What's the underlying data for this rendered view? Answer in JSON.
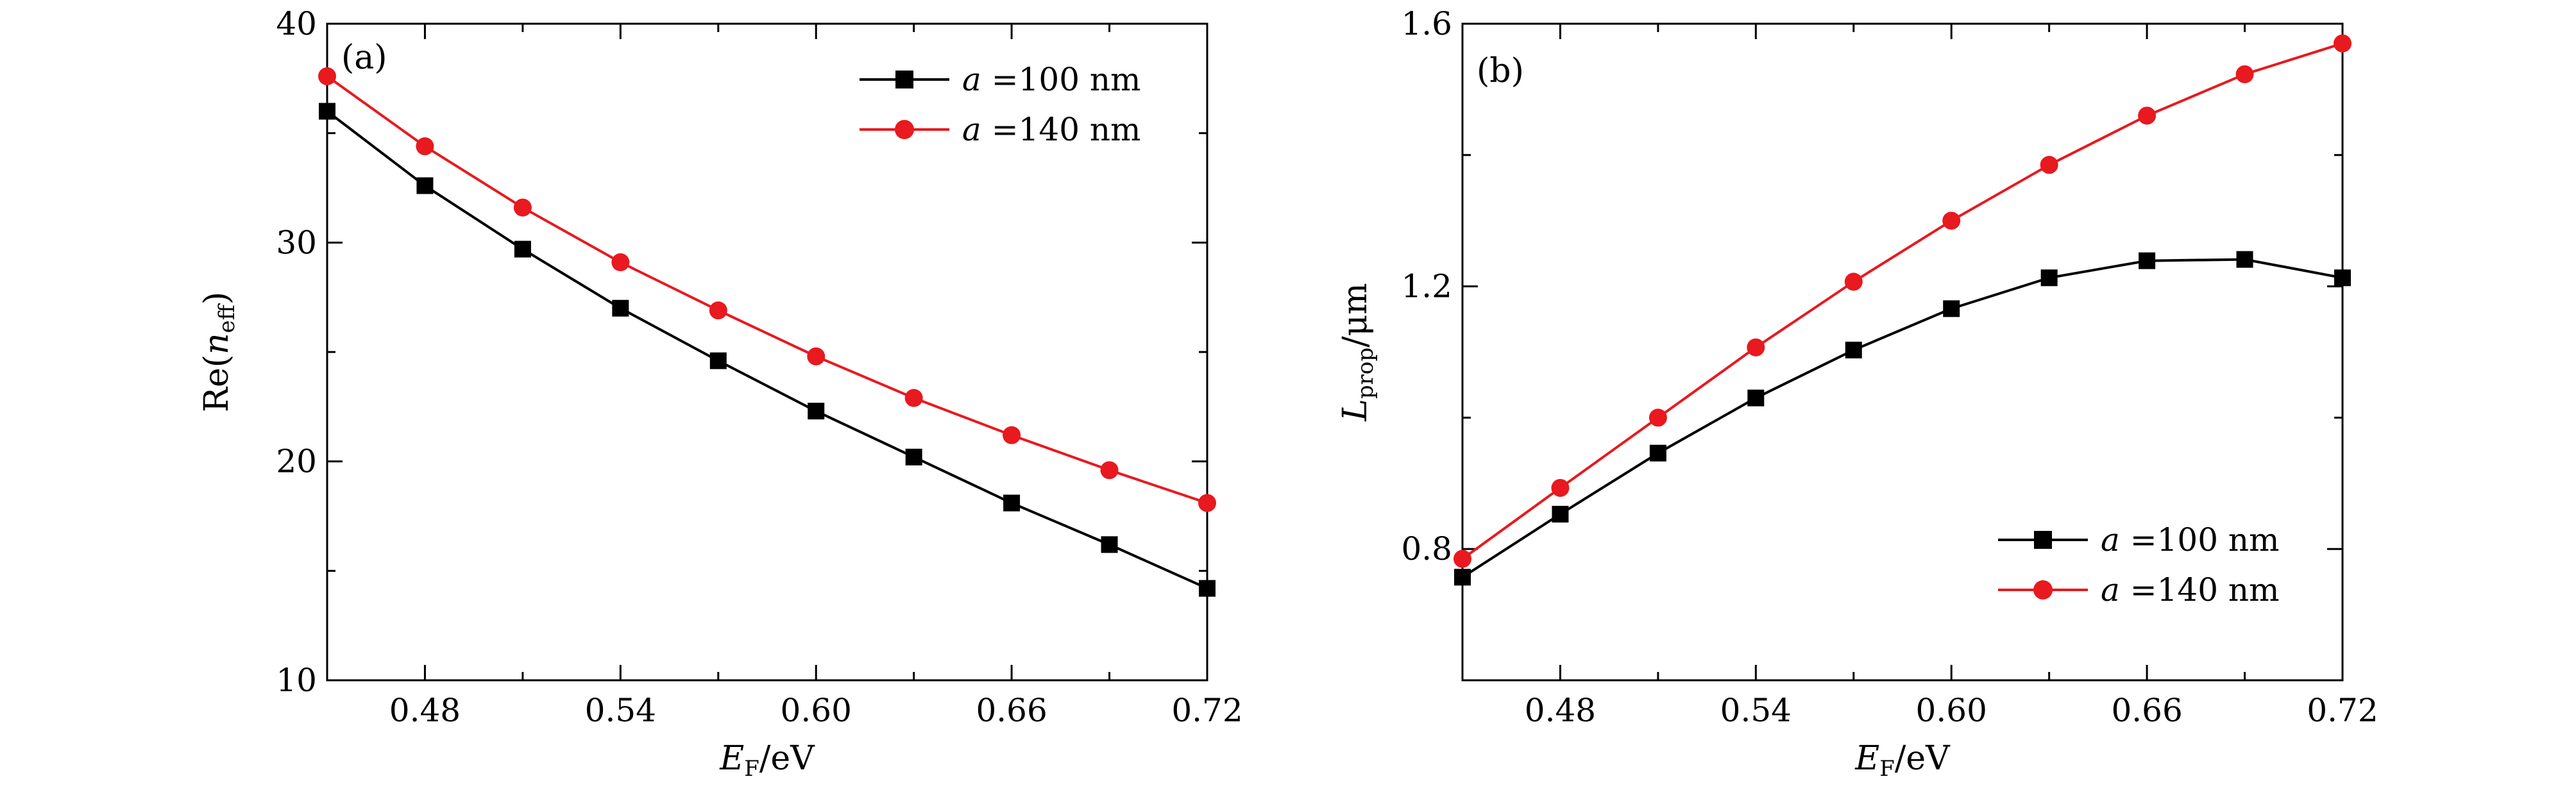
{
  "chart_data": [
    {
      "type": "line",
      "panel_label": "(a)",
      "x": [
        0.45,
        0.48,
        0.51,
        0.54,
        0.57,
        0.6,
        0.63,
        0.66,
        0.69,
        0.72
      ],
      "xlabel_main": "E",
      "xlabel_sub": "F",
      "xlabel_unit": "/eV",
      "ylabel_pre": "Re(",
      "ylabel_main": "n",
      "ylabel_sub": "eff",
      "ylabel_post": ")",
      "xlim": [
        0.45,
        0.72
      ],
      "ylim": [
        10,
        40
      ],
      "xticks": [
        0.48,
        0.54,
        0.6,
        0.66,
        0.72
      ],
      "xtick_labels": [
        "0.48",
        "0.54",
        "0.60",
        "0.66",
        "0.72"
      ],
      "yticks": [
        10,
        20,
        30,
        40
      ],
      "ytick_labels": [
        "10",
        "20",
        "30",
        "40"
      ],
      "legend_position": "top-right",
      "series": [
        {
          "name_var": "a",
          "name_rest": " =100 nm",
          "color": "#000000",
          "marker": "square",
          "values": [
            36.0,
            32.6,
            29.7,
            27.0,
            24.6,
            22.3,
            20.2,
            18.1,
            16.2,
            14.2
          ]
        },
        {
          "name_var": "a",
          "name_rest": " =140 nm",
          "color": "#e8191f",
          "marker": "circle",
          "values": [
            37.6,
            34.4,
            31.6,
            29.1,
            26.9,
            24.8,
            22.9,
            21.2,
            19.6,
            18.1
          ]
        }
      ]
    },
    {
      "type": "line",
      "panel_label": "(b)",
      "x": [
        0.45,
        0.48,
        0.51,
        0.54,
        0.57,
        0.6,
        0.63,
        0.66,
        0.69,
        0.72
      ],
      "xlabel_main": "E",
      "xlabel_sub": "F",
      "xlabel_unit": "/eV",
      "ylabel_main": "L",
      "ylabel_sub": "prop",
      "ylabel_unit": "/μm",
      "xlim": [
        0.45,
        0.72
      ],
      "ylim": [
        0.6,
        1.6
      ],
      "xticks": [
        0.48,
        0.54,
        0.6,
        0.66,
        0.72
      ],
      "xtick_labels": [
        "0.48",
        "0.54",
        "0.60",
        "0.66",
        "0.72"
      ],
      "yticks": [
        0.8,
        1.2,
        1.6
      ],
      "ytick_labels": [
        "0.8",
        "1.2",
        "1.6"
      ],
      "legend_position": "bottom-right",
      "series": [
        {
          "name_var": "a",
          "name_rest": " =100 nm",
          "color": "#000000",
          "marker": "square",
          "values": [
            0.757,
            0.853,
            0.946,
            1.03,
            1.103,
            1.166,
            1.213,
            1.239,
            1.241,
            1.213
          ]
        },
        {
          "name_var": "a",
          "name_rest": " =140 nm",
          "color": "#e8191f",
          "marker": "circle",
          "values": [
            0.785,
            0.893,
            1.0,
            1.107,
            1.207,
            1.3,
            1.385,
            1.46,
            1.523,
            1.57
          ]
        }
      ]
    }
  ]
}
